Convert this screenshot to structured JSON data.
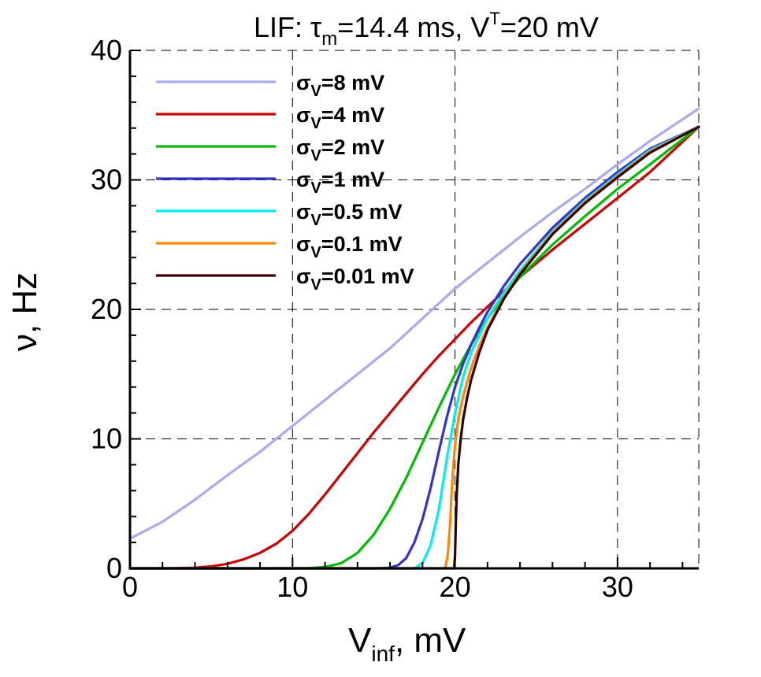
{
  "chart_data": {
    "type": "line",
    "title": {
      "prefix": "LIF:  ",
      "tau_symbol": "τ",
      "tau_sub": "m",
      "tau_value": "=14.4 ms,  V",
      "v_sup": "T",
      "v_value": "=20 mV"
    },
    "xlabel": {
      "main": "V",
      "sub": "inf",
      "rest": ", mV"
    },
    "ylabel": "ν, Hz",
    "xlim": [
      0,
      35
    ],
    "ylim": [
      0,
      40
    ],
    "xticks": [
      0,
      10,
      20,
      30
    ],
    "yticks": [
      0,
      10,
      20,
      30,
      40
    ],
    "grid": true,
    "legend_placement": "top-left",
    "series": [
      {
        "name": "σV=8 mV",
        "label_main": "σ",
        "label_sub": "V",
        "label_rest": "=8 mV",
        "color": "#aaaaee",
        "x": [
          0,
          2,
          4,
          6,
          8,
          10,
          12,
          14,
          16,
          18,
          20,
          22,
          24,
          26,
          28,
          30,
          32,
          35
        ],
        "y": [
          2.3,
          3.6,
          5.3,
          7.2,
          9.0,
          11.0,
          13.0,
          15.0,
          17.0,
          19.3,
          21.6,
          23.6,
          25.6,
          27.5,
          29.3,
          31.2,
          33.0,
          35.5
        ]
      },
      {
        "name": "σV=4 mV",
        "label_main": "σ",
        "label_sub": "V",
        "label_rest": "=4 mV",
        "color": "#cc0000",
        "x": [
          0,
          2,
          4,
          5,
          6,
          7,
          8,
          9,
          10,
          11,
          12,
          13,
          14,
          15,
          16,
          17,
          18,
          19,
          20,
          21,
          22,
          23,
          24,
          26,
          28,
          30,
          32,
          35
        ],
        "y": [
          0,
          0,
          0.05,
          0.15,
          0.35,
          0.7,
          1.2,
          1.9,
          2.9,
          4.2,
          5.7,
          7.3,
          8.9,
          10.5,
          12.0,
          13.5,
          15.0,
          16.4,
          17.7,
          19.0,
          20.2,
          21.4,
          22.5,
          24.6,
          26.6,
          28.6,
          30.6,
          34.1
        ]
      },
      {
        "name": "σV=2 mV",
        "label_main": "σ",
        "label_sub": "V",
        "label_rest": "=2 mV",
        "color": "#00bb00",
        "x": [
          0,
          10,
          11,
          12,
          13,
          14,
          15,
          16,
          17,
          18,
          19,
          20,
          21,
          22,
          23,
          24,
          26,
          28,
          30,
          32,
          35
        ],
        "y": [
          0,
          0,
          0.02,
          0.1,
          0.4,
          1.2,
          2.6,
          4.6,
          7.0,
          9.7,
          12.4,
          15.0,
          17.3,
          19.3,
          21.0,
          22.5,
          25.0,
          27.2,
          29.3,
          31.2,
          34.1
        ]
      },
      {
        "name": "σV=1 mV",
        "label_main": "σ",
        "label_sub": "V",
        "label_rest": "=1 mV",
        "color": "#3333cc",
        "x": [
          0,
          15,
          16,
          16.5,
          17,
          17.5,
          18,
          18.5,
          19,
          19.5,
          20,
          20.5,
          21,
          21.5,
          22,
          23,
          24,
          26,
          28,
          30,
          32,
          35
        ],
        "y": [
          0,
          0,
          0.05,
          0.25,
          0.8,
          2.0,
          3.8,
          6.2,
          9.0,
          11.7,
          14.0,
          15.8,
          17.3,
          18.6,
          19.8,
          21.8,
          23.5,
          26.3,
          28.6,
          30.6,
          32.4,
          34.1
        ]
      },
      {
        "name": "σV=0.5 mV",
        "label_main": "σ",
        "label_sub": "V",
        "label_rest": "=0.5 mV",
        "color": "#00eeee",
        "x": [
          0,
          17.5,
          18,
          18.5,
          19,
          19.5,
          20,
          20.5,
          21,
          22,
          23,
          24,
          26,
          28,
          30,
          32,
          35
        ],
        "y": [
          0,
          0,
          0.4,
          1.8,
          4.5,
          8.5,
          12.0,
          14.8,
          16.7,
          19.3,
          21.3,
          23.0,
          26.0,
          28.4,
          30.4,
          32.3,
          34.1
        ]
      },
      {
        "name": "σV=0.1 mV",
        "label_main": "σ",
        "label_sub": "V",
        "label_rest": "=0.1 mV",
        "color": "#ff8800",
        "x": [
          0,
          19.4,
          19.55,
          19.7,
          19.8,
          19.9,
          20,
          20.2,
          20.5,
          21,
          21.5,
          22,
          23,
          24,
          26,
          28,
          30,
          32,
          35
        ],
        "y": [
          0,
          0,
          1.0,
          3.5,
          6.0,
          8.0,
          9.5,
          11.5,
          13.3,
          15.5,
          17.2,
          18.6,
          20.9,
          22.8,
          25.9,
          28.3,
          30.3,
          32.2,
          34.1
        ]
      },
      {
        "name": "σV=0.01 mV",
        "label_main": "σ",
        "label_sub": "V",
        "label_rest": "=0.01 mV",
        "color": "#330000",
        "x": [
          0,
          19.95,
          20,
          20.05,
          20.1,
          20.2,
          20.35,
          20.5,
          20.75,
          21,
          21.5,
          22,
          23,
          24,
          26,
          28,
          30,
          32,
          35
        ],
        "y": [
          0,
          0,
          1.0,
          3.5,
          5.5,
          8.0,
          10.0,
          11.5,
          13.2,
          14.6,
          16.7,
          18.4,
          20.8,
          22.7,
          25.8,
          28.2,
          30.2,
          32.1,
          34.1
        ]
      }
    ]
  }
}
